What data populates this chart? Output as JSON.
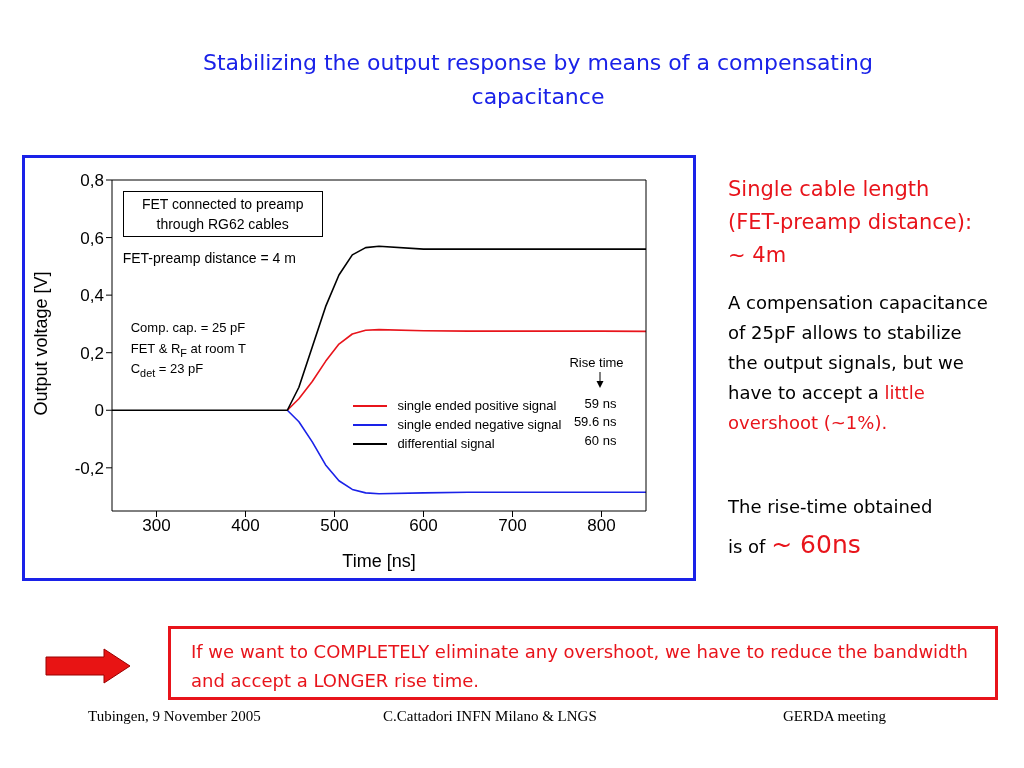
{
  "chart_data": {
    "type": "line",
    "title": "Stabilizing the output response by means of a compensating capacitance",
    "xlabel": "Time [ns]",
    "ylabel": "Output voltage [V]",
    "x": [
      250,
      300,
      350,
      400,
      447,
      460,
      475,
      490,
      505,
      520,
      535,
      550,
      600,
      650,
      700,
      750,
      800,
      850
    ],
    "series": [
      {
        "name": "single ended positive signal",
        "color": "#e8141b",
        "values": [
          null,
          null,
          null,
          null,
          0,
          0.04,
          0.1,
          0.17,
          0.23,
          0.265,
          0.278,
          0.28,
          0.276,
          0.275,
          0.275,
          0.275,
          0.275,
          0.274
        ]
      },
      {
        "name": "single ended negative signal",
        "color": "#1a22e8",
        "values": [
          null,
          null,
          null,
          null,
          0,
          -0.04,
          -0.11,
          -0.19,
          -0.245,
          -0.275,
          -0.287,
          -0.29,
          -0.287,
          -0.285,
          -0.285,
          -0.285,
          -0.285,
          -0.285
        ]
      },
      {
        "name": "differential signal",
        "color": "#000000",
        "values": [
          0,
          0,
          0,
          0,
          0,
          0.08,
          0.22,
          0.36,
          0.47,
          0.54,
          0.565,
          0.57,
          0.56,
          0.56,
          0.56,
          0.56,
          0.56,
          0.56
        ]
      }
    ],
    "xlim": [
      250,
      850
    ],
    "xticks": [
      300,
      400,
      500,
      600,
      700,
      800
    ],
    "ylim": [
      -0.35,
      0.8
    ],
    "yticks": [
      {
        "value": -0.2,
        "label": "-0,2"
      },
      0,
      {
        "value": 0.2,
        "label": "0,2"
      },
      {
        "value": 0.4,
        "label": "0,4"
      },
      {
        "value": 0.6,
        "label": "0,6"
      },
      {
        "value": 0.8,
        "label": "0,8"
      }
    ],
    "legend": "bottom right",
    "marker": "none",
    "line_style": "solid",
    "annotations": [
      "FET connected to preamp through RG62 cables",
      "FET-preamp distance = 4 m",
      "Comp. cap.  = 25 pF",
      "FET & R$_{F}$ at room T",
      "C$_{det}$ = 23 pF",
      "Rise time",
      "59 ns",
      "59.6 ns",
      "60 ns",
      "Single cable length (FET-preamp distance): ~ 4m",
      "A compensation capacitance of 25pF allows to stabilize the output signals, but we have to accept a",
      "little overshoot (~1%).",
      "The rise-time obtained is of",
      "~ 60ns",
      "If we want to COMPLETELY eliminate any overshoot, we have to reduce the bandwidth and accept a LONGER rise time.",
      "Tubingen, 9 November 2005",
      "C.Cattadori  INFN Milano & LNGS",
      "GERDA  meeting"
    ]
  }
}
